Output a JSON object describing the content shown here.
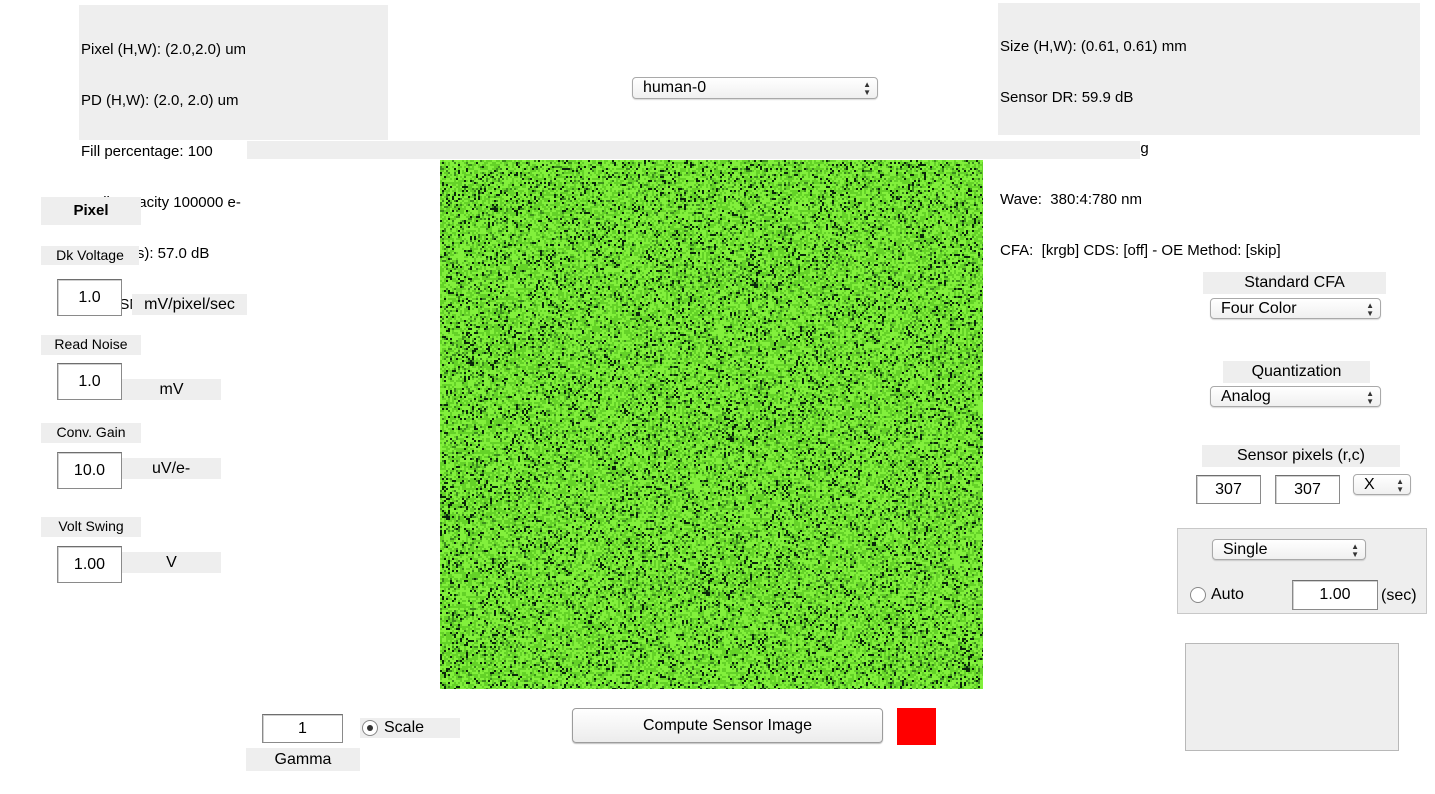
{
  "info_left": [
    "Pixel (H,W): (2.0,2.0) um",
    "PD (H,W): (2.0, 2.0) um",
    "Fill percentage: 100",
    "Well capacity 100000 e-",
    "DR (1 ms): 57.0 dB",
    "Peak SNR: 50 dB"
  ],
  "info_right": [
    "Size (H,W): (0.61, 0.61) mm",
    "Sensor DR: 59.9 dB",
    "Sensor FOV: 2.00 deg",
    "Wave:  380:4:780 nm",
    "CFA:  [krgb] CDS: [off] - OE Method: [skip]"
  ],
  "sensor_select": "human-0",
  "pixel_panel": {
    "title": "Pixel",
    "dark_voltage": {
      "label": "Dk Voltage",
      "value": "1.0",
      "unit": "mV/pixel/sec"
    },
    "read_noise": {
      "label": "Read Noise",
      "value": "1.0",
      "unit": "mV"
    },
    "conv_gain": {
      "label": "Conv. Gain",
      "value": "10.0",
      "unit": "uV/e-"
    },
    "volt_swing": {
      "label": "Volt Swing",
      "value": "1.00",
      "unit": "V"
    }
  },
  "right_panel": {
    "cfa_label": "Standard CFA",
    "cfa_value": "Four Color",
    "quant_label": "Quantization",
    "quant_value": "Analog",
    "pixels_label": "Sensor pixels  (r,c)",
    "rows": "307",
    "cols": "307",
    "size_mode": "X",
    "exposure_mode": "Single",
    "auto_label": "Auto",
    "exposure_time": "1.00",
    "exposure_unit": "(sec)"
  },
  "bottom": {
    "gamma_value": "1",
    "gamma_label": "Gamma",
    "scale_label": "Scale",
    "compute_label": "Compute Sensor  Image"
  },
  "colors": {
    "status_indicator": "#ff0000",
    "panel_bg": "#eeeeee"
  }
}
